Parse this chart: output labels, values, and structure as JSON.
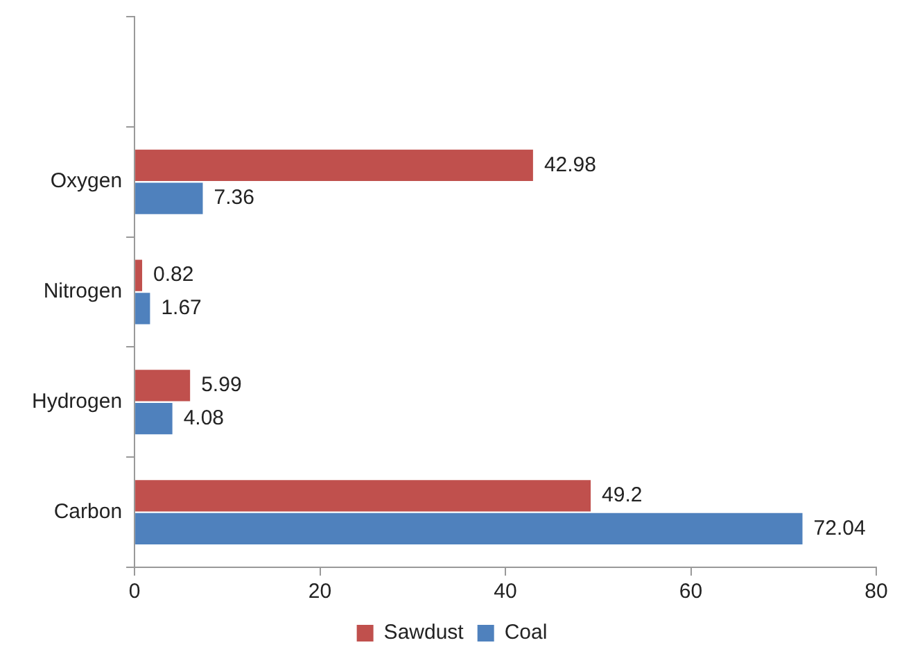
{
  "chart_data": {
    "type": "bar",
    "orientation": "horizontal",
    "categories": [
      null,
      "Oxygen",
      "Nitrogen",
      "Hydrogen",
      "Carbon"
    ],
    "series": [
      {
        "name": "Sawdust",
        "color": "#c0504d",
        "values": [
          null,
          42.98,
          0.82,
          5.99,
          49.2
        ]
      },
      {
        "name": "Coal",
        "color": "#4f81bd",
        "values": [
          null,
          7.36,
          1.67,
          4.08,
          72.04
        ]
      }
    ],
    "xlim": [
      0,
      80
    ],
    "xticks": [
      0,
      20,
      40,
      60,
      80
    ],
    "grid": false,
    "legend": "bottom",
    "data_labels": true
  }
}
